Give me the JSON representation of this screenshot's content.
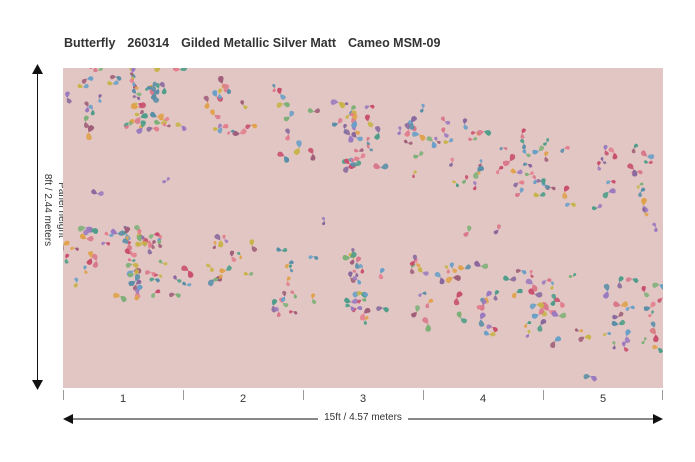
{
  "header": {
    "name": "Butterfly",
    "code": "260314",
    "finish": "Gilded Metallic Silver Matt",
    "colorway": "Cameo MSM-09"
  },
  "dimensions": {
    "height_label_1": "Panel height",
    "height_label_2": "8ft / 2.44 meters",
    "width_label": "15ft  / 4.57 meters"
  },
  "panels": [
    "1",
    "2",
    "3",
    "4",
    "5"
  ],
  "colors": {
    "background": "#e2c6c3",
    "butterflies": [
      "#c9506f",
      "#6aa0c8",
      "#7fb07a",
      "#e0a24c",
      "#9b7bbf",
      "#d97a8c",
      "#5b8fa8",
      "#c8b44a",
      "#8a6a9e",
      "#4f9d8a",
      "#e3808f",
      "#a05f7a"
    ]
  },
  "icons": [
    "butterfly-icon",
    "arrow-up-icon",
    "arrow-down-icon",
    "arrow-left-icon",
    "arrow-right-icon"
  ]
}
